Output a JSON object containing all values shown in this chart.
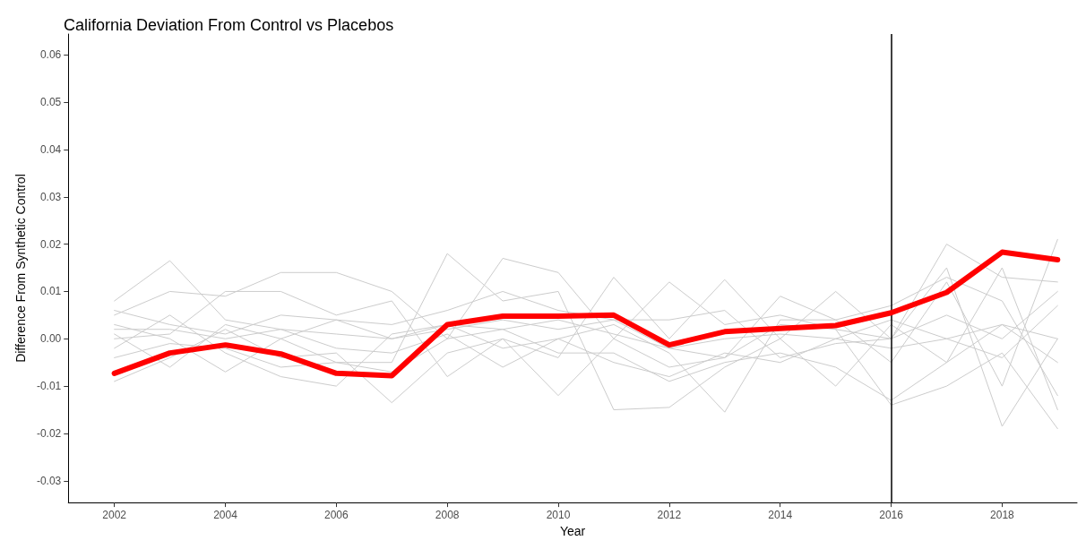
{
  "chart_data": {
    "type": "line",
    "title": "California Deviation From Control vs Placebos",
    "xlabel": "Year",
    "ylabel": "Difference From Synthetic Control",
    "x": [
      2002,
      2003,
      2004,
      2005,
      2006,
      2007,
      2008,
      2009,
      2010,
      2011,
      2012,
      2013,
      2014,
      2015,
      2016,
      2017,
      2018,
      2019
    ],
    "series": [
      {
        "color": "#cccccc",
        "values": [
          0.008,
          0.0165,
          0.004,
          0.002,
          0.001,
          0.0,
          0.003,
          0.002,
          0.004,
          0.001,
          -0.002,
          0.0,
          0.001,
          0.0,
          -0.002,
          0.0,
          0.003,
          0.0
        ]
      },
      {
        "color": "#cccccc",
        "values": [
          0.005,
          0.01,
          0.009,
          0.014,
          0.014,
          0.01,
          0.0,
          0.017,
          0.014,
          0.0,
          -0.006,
          -0.004,
          0.003,
          0.002,
          0.0,
          0.02,
          0.013,
          0.012
        ]
      },
      {
        "color": "#cccccc",
        "values": [
          -0.009,
          -0.004,
          0.002,
          -0.004,
          -0.003,
          -0.0135,
          -0.003,
          0.0,
          -0.012,
          0.0,
          0.012,
          0.003,
          0.005,
          0.002,
          -0.014,
          -0.01,
          -0.003,
          -0.019
        ]
      },
      {
        "color": "#cccccc",
        "values": [
          0.003,
          0.0,
          -0.007,
          0.0,
          -0.005,
          -0.005,
          0.018,
          0.008,
          0.01,
          -0.015,
          -0.0145,
          -0.006,
          0.0,
          0.01,
          0.0,
          0.015,
          -0.0185,
          0.0
        ]
      },
      {
        "color": "#cccccc",
        "values": [
          0.0,
          0.001,
          0.01,
          0.01,
          0.005,
          0.008,
          -0.008,
          0.0,
          -0.004,
          0.013,
          0.0,
          0.0125,
          0.0,
          -0.01,
          0.003,
          -0.005,
          0.015,
          -0.015
        ]
      },
      {
        "color": "#cccccc",
        "values": [
          -0.002,
          0.005,
          -0.003,
          -0.008,
          -0.01,
          0.001,
          0.003,
          -0.002,
          0.0,
          0.003,
          -0.003,
          -0.0155,
          0.004,
          0.004,
          -0.005,
          0.012,
          -0.01,
          0.021
        ]
      },
      {
        "color": "#cccccc",
        "values": [
          0.001,
          -0.006,
          0.003,
          0.0,
          0.004,
          0.0,
          0.002,
          0.004,
          0.002,
          0.004,
          0.004,
          0.006,
          -0.004,
          -0.001,
          0.0,
          0.005,
          0.0,
          0.01
        ]
      },
      {
        "color": "#cccccc",
        "values": [
          0.006,
          0.003,
          0.001,
          0.005,
          0.004,
          0.003,
          0.006,
          0.01,
          0.006,
          0.004,
          -0.002,
          -0.004,
          0.009,
          0.004,
          0.007,
          0.013,
          0.008,
          -0.012
        ]
      },
      {
        "color": "#cccccc",
        "values": [
          -0.004,
          -0.001,
          -0.002,
          -0.006,
          -0.005,
          -0.007,
          0.0,
          0.002,
          -0.003,
          -0.003,
          -0.009,
          -0.005,
          -0.003,
          -0.006,
          -0.013,
          -0.005,
          0.003,
          -0.005
        ]
      },
      {
        "color": "#cccccc",
        "values": [
          0.002,
          0.002,
          0.0,
          0.002,
          -0.002,
          -0.003,
          0.001,
          -0.006,
          0.0,
          -0.005,
          -0.008,
          -0.003,
          -0.005,
          0.0,
          0.004,
          0.0,
          -0.004,
          0.007
        ]
      },
      {
        "color": "#ff0000",
        "values": [
          -0.0073,
          -0.003,
          -0.0013,
          -0.0032,
          -0.0073,
          -0.0078,
          0.003,
          0.0048,
          0.0048,
          0.005,
          -0.0013,
          0.0015,
          0.0022,
          0.0028,
          0.0055,
          0.0098,
          0.0183,
          0.0167
        ]
      }
    ],
    "xlim": [
      2001.17,
      2019.35
    ],
    "xticks": [
      2002,
      2004,
      2006,
      2008,
      2010,
      2012,
      2014,
      2016,
      2018
    ],
    "ylim": [
      -0.0346,
      0.0644
    ],
    "yticks": [
      -0.03,
      -0.02,
      -0.01,
      {
        "value": 0,
        "label": "0.00"
      },
      0.01,
      0.02,
      0.03,
      0.04,
      0.05,
      0.06
    ],
    "ref_lines": [
      {
        "axis": "x",
        "value": 2016,
        "color": "#000000"
      }
    ],
    "grid": false,
    "marker": "none",
    "line_style": "solid"
  }
}
